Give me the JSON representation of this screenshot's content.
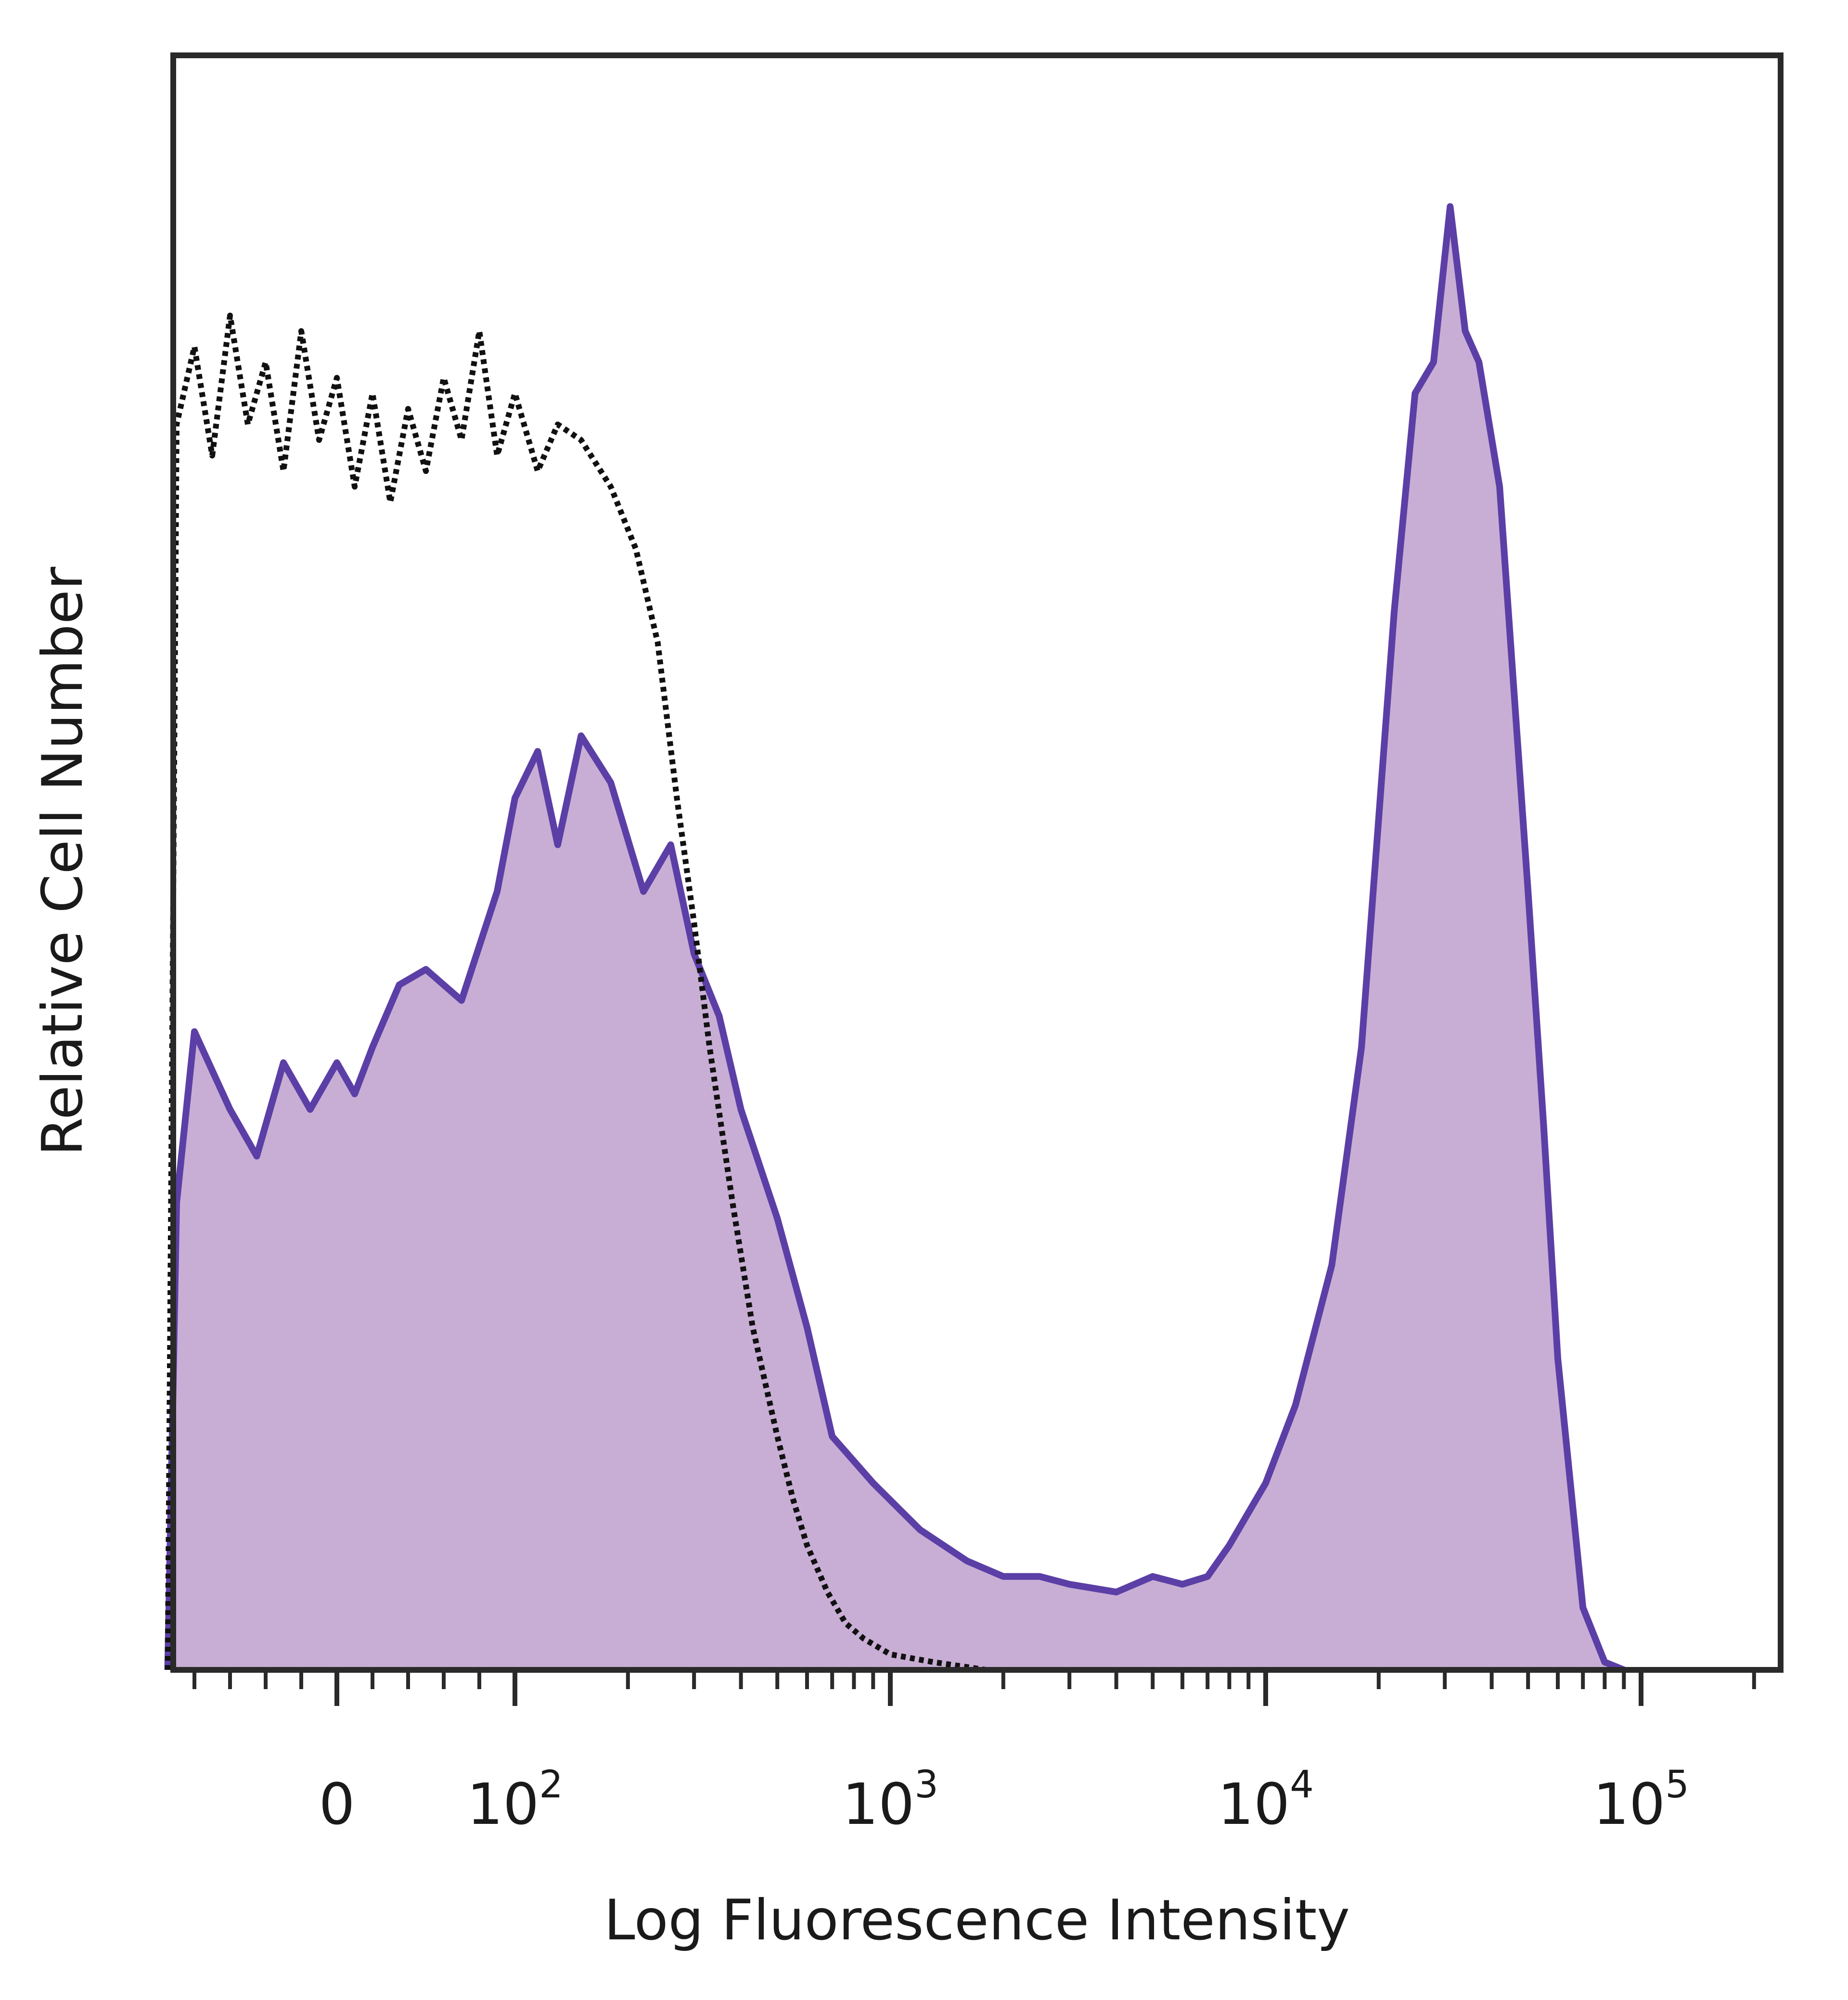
{
  "chart_data": {
    "type": "area",
    "title": "",
    "xlabel": "Log Fluorescence Intensity",
    "ylabel": "Relative Cell Number",
    "x_scale": "biexponential",
    "xlim": [
      -100,
      200000
    ],
    "ylim": [
      0,
      100
    ],
    "y_ticks_shown": false,
    "grid": false,
    "legend": "none",
    "x_tick_labels": [
      {
        "value": 0,
        "base": "0",
        "exp": ""
      },
      {
        "value": 100,
        "base": "10",
        "exp": "2"
      },
      {
        "value": 1000,
        "base": "10",
        "exp": "3"
      },
      {
        "value": 10000,
        "base": "10",
        "exp": "4"
      },
      {
        "value": 100000,
        "base": "10",
        "exp": "5"
      }
    ],
    "x_minor_ticks": [
      -80,
      -60,
      -40,
      -20,
      20,
      40,
      60,
      80,
      200,
      300,
      400,
      500,
      600,
      700,
      800,
      900,
      2000,
      3000,
      4000,
      5000,
      6000,
      7000,
      8000,
      9000,
      20000,
      30000,
      40000,
      50000,
      60000,
      70000,
      80000,
      90000,
      200000
    ],
    "series": [
      {
        "style": "filled",
        "fill": "#c8aed4",
        "stroke": "#5b3fa6",
        "points": [
          [
            -95,
            0
          ],
          [
            -90,
            30
          ],
          [
            -80,
            41
          ],
          [
            -60,
            36
          ],
          [
            -45,
            33
          ],
          [
            -30,
            39
          ],
          [
            -15,
            36
          ],
          [
            0,
            39
          ],
          [
            10,
            37
          ],
          [
            20,
            40
          ],
          [
            35,
            44
          ],
          [
            50,
            45
          ],
          [
            70,
            43
          ],
          [
            90,
            50
          ],
          [
            100,
            56
          ],
          [
            115,
            59
          ],
          [
            130,
            53
          ],
          [
            150,
            60
          ],
          [
            180,
            57
          ],
          [
            220,
            50
          ],
          [
            260,
            53
          ],
          [
            300,
            46
          ],
          [
            350,
            42
          ],
          [
            400,
            36
          ],
          [
            500,
            29
          ],
          [
            600,
            22
          ],
          [
            700,
            15
          ],
          [
            900,
            12
          ],
          [
            1200,
            9
          ],
          [
            1600,
            7
          ],
          [
            2000,
            6
          ],
          [
            2500,
            6
          ],
          [
            3000,
            5.5
          ],
          [
            4000,
            5
          ],
          [
            5000,
            6
          ],
          [
            6000,
            5.5
          ],
          [
            7000,
            6
          ],
          [
            8000,
            8
          ],
          [
            10000,
            12
          ],
          [
            12000,
            17
          ],
          [
            15000,
            26
          ],
          [
            18000,
            40
          ],
          [
            22000,
            68
          ],
          [
            25000,
            82
          ],
          [
            28000,
            84
          ],
          [
            31000,
            94
          ],
          [
            34000,
            86
          ],
          [
            37000,
            84
          ],
          [
            42000,
            76
          ],
          [
            50000,
            50
          ],
          [
            55000,
            35
          ],
          [
            60000,
            20
          ],
          [
            70000,
            4
          ],
          [
            80000,
            0.5
          ],
          [
            90000,
            0
          ]
        ]
      },
      {
        "style": "dotted",
        "stroke": "#111111",
        "points": [
          [
            -95,
            0
          ],
          [
            -90,
            80
          ],
          [
            -80,
            85
          ],
          [
            -70,
            78
          ],
          [
            -60,
            87
          ],
          [
            -50,
            80
          ],
          [
            -40,
            84
          ],
          [
            -30,
            77
          ],
          [
            -20,
            86
          ],
          [
            -10,
            79
          ],
          [
            0,
            83
          ],
          [
            10,
            76
          ],
          [
            20,
            82
          ],
          [
            30,
            75
          ],
          [
            40,
            81
          ],
          [
            50,
            77
          ],
          [
            60,
            83
          ],
          [
            70,
            79
          ],
          [
            80,
            86
          ],
          [
            90,
            78
          ],
          [
            100,
            82
          ],
          [
            115,
            77
          ],
          [
            130,
            80
          ],
          [
            150,
            79
          ],
          [
            180,
            76
          ],
          [
            210,
            72
          ],
          [
            240,
            66
          ],
          [
            270,
            56
          ],
          [
            300,
            48
          ],
          [
            330,
            40
          ],
          [
            380,
            30
          ],
          [
            430,
            22
          ],
          [
            500,
            15
          ],
          [
            550,
            11
          ],
          [
            600,
            8
          ],
          [
            680,
            5
          ],
          [
            760,
            3
          ],
          [
            850,
            2
          ],
          [
            1000,
            1
          ],
          [
            1300,
            0.5
          ],
          [
            1800,
            0
          ]
        ]
      }
    ]
  }
}
